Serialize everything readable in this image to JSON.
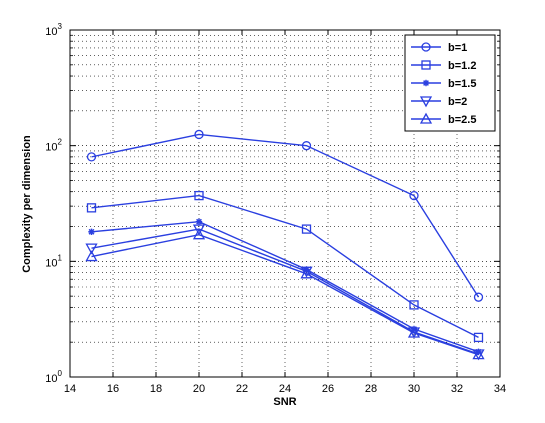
{
  "chart_data": {
    "type": "line",
    "title": "",
    "xlabel": "SNR",
    "ylabel": "Complexity per dimension",
    "xlim": [
      14,
      34
    ],
    "ylim": [
      1,
      1000
    ],
    "yscale": "log",
    "grid": true,
    "legend_position": "top-right",
    "color": "#2a3fe0",
    "x_ticks": [
      "14",
      "16",
      "18",
      "20",
      "22",
      "24",
      "26",
      "28",
      "30",
      "32",
      "34"
    ],
    "y_ticks": [
      {
        "base": "10",
        "exp": "0"
      },
      {
        "base": "10",
        "exp": "1"
      },
      {
        "base": "10",
        "exp": "2"
      },
      {
        "base": "10",
        "exp": "3"
      }
    ],
    "x": [
      15,
      20,
      25,
      30,
      33
    ],
    "series": [
      {
        "name": "b=1",
        "marker": "circle",
        "values": [
          80,
          125,
          100,
          37,
          4.9
        ]
      },
      {
        "name": "b=1.2",
        "marker": "square",
        "values": [
          29,
          37,
          19,
          4.2,
          2.2
        ]
      },
      {
        "name": "b=1.5",
        "marker": "star",
        "values": [
          18,
          22,
          8.5,
          2.6,
          1.65
        ]
      },
      {
        "name": "b=2",
        "marker": "triangle-down",
        "values": [
          13,
          19,
          8.2,
          2.45,
          1.58
        ]
      },
      {
        "name": "b=2.5",
        "marker": "triangle-up",
        "values": [
          11,
          17,
          7.8,
          2.4,
          1.56
        ]
      }
    ]
  }
}
